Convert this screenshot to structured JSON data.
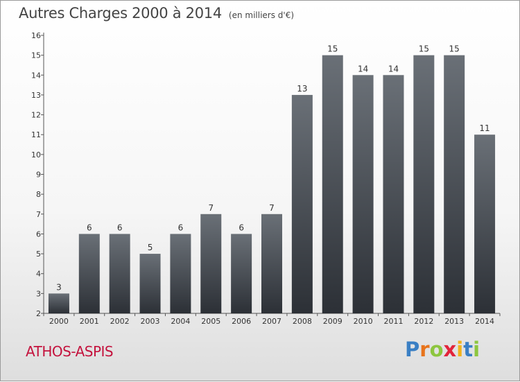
{
  "title": "Autres Charges 2000 à 2014",
  "subtitle": "(en milliers d'€)",
  "commune": "ATHOS-ASPIS",
  "logo": {
    "letters": [
      "P",
      "r",
      "o",
      "x",
      "i",
      "t",
      "i"
    ],
    "colors": [
      "#3a7fc4",
      "#e8741c",
      "#8dc63f",
      "#e2243b",
      "#f2b31b",
      "#3a7fc4",
      "#8dc63f"
    ]
  },
  "colors": {
    "bar_top": "#6a7077",
    "bar_bottom": "#2c3036",
    "commune": "#c4123d"
  },
  "chart_data": {
    "type": "bar",
    "title": "Autres Charges 2000 à 2014",
    "subtitle": "(en milliers d'€)",
    "categories": [
      "2000",
      "2001",
      "2002",
      "2003",
      "2004",
      "2005",
      "2006",
      "2007",
      "2008",
      "2009",
      "2010",
      "2011",
      "2012",
      "2013",
      "2014"
    ],
    "values": [
      3,
      6,
      6,
      5,
      6,
      7,
      6,
      7,
      13,
      15,
      14,
      14,
      15,
      15,
      11
    ],
    "ylim": [
      2,
      16
    ],
    "yticks": [
      "2",
      "3",
      "4",
      "5",
      "6",
      "7",
      "8",
      "9",
      "10",
      "11",
      "12",
      "13",
      "14",
      "15",
      "16"
    ],
    "grid": false,
    "legend": "none"
  }
}
